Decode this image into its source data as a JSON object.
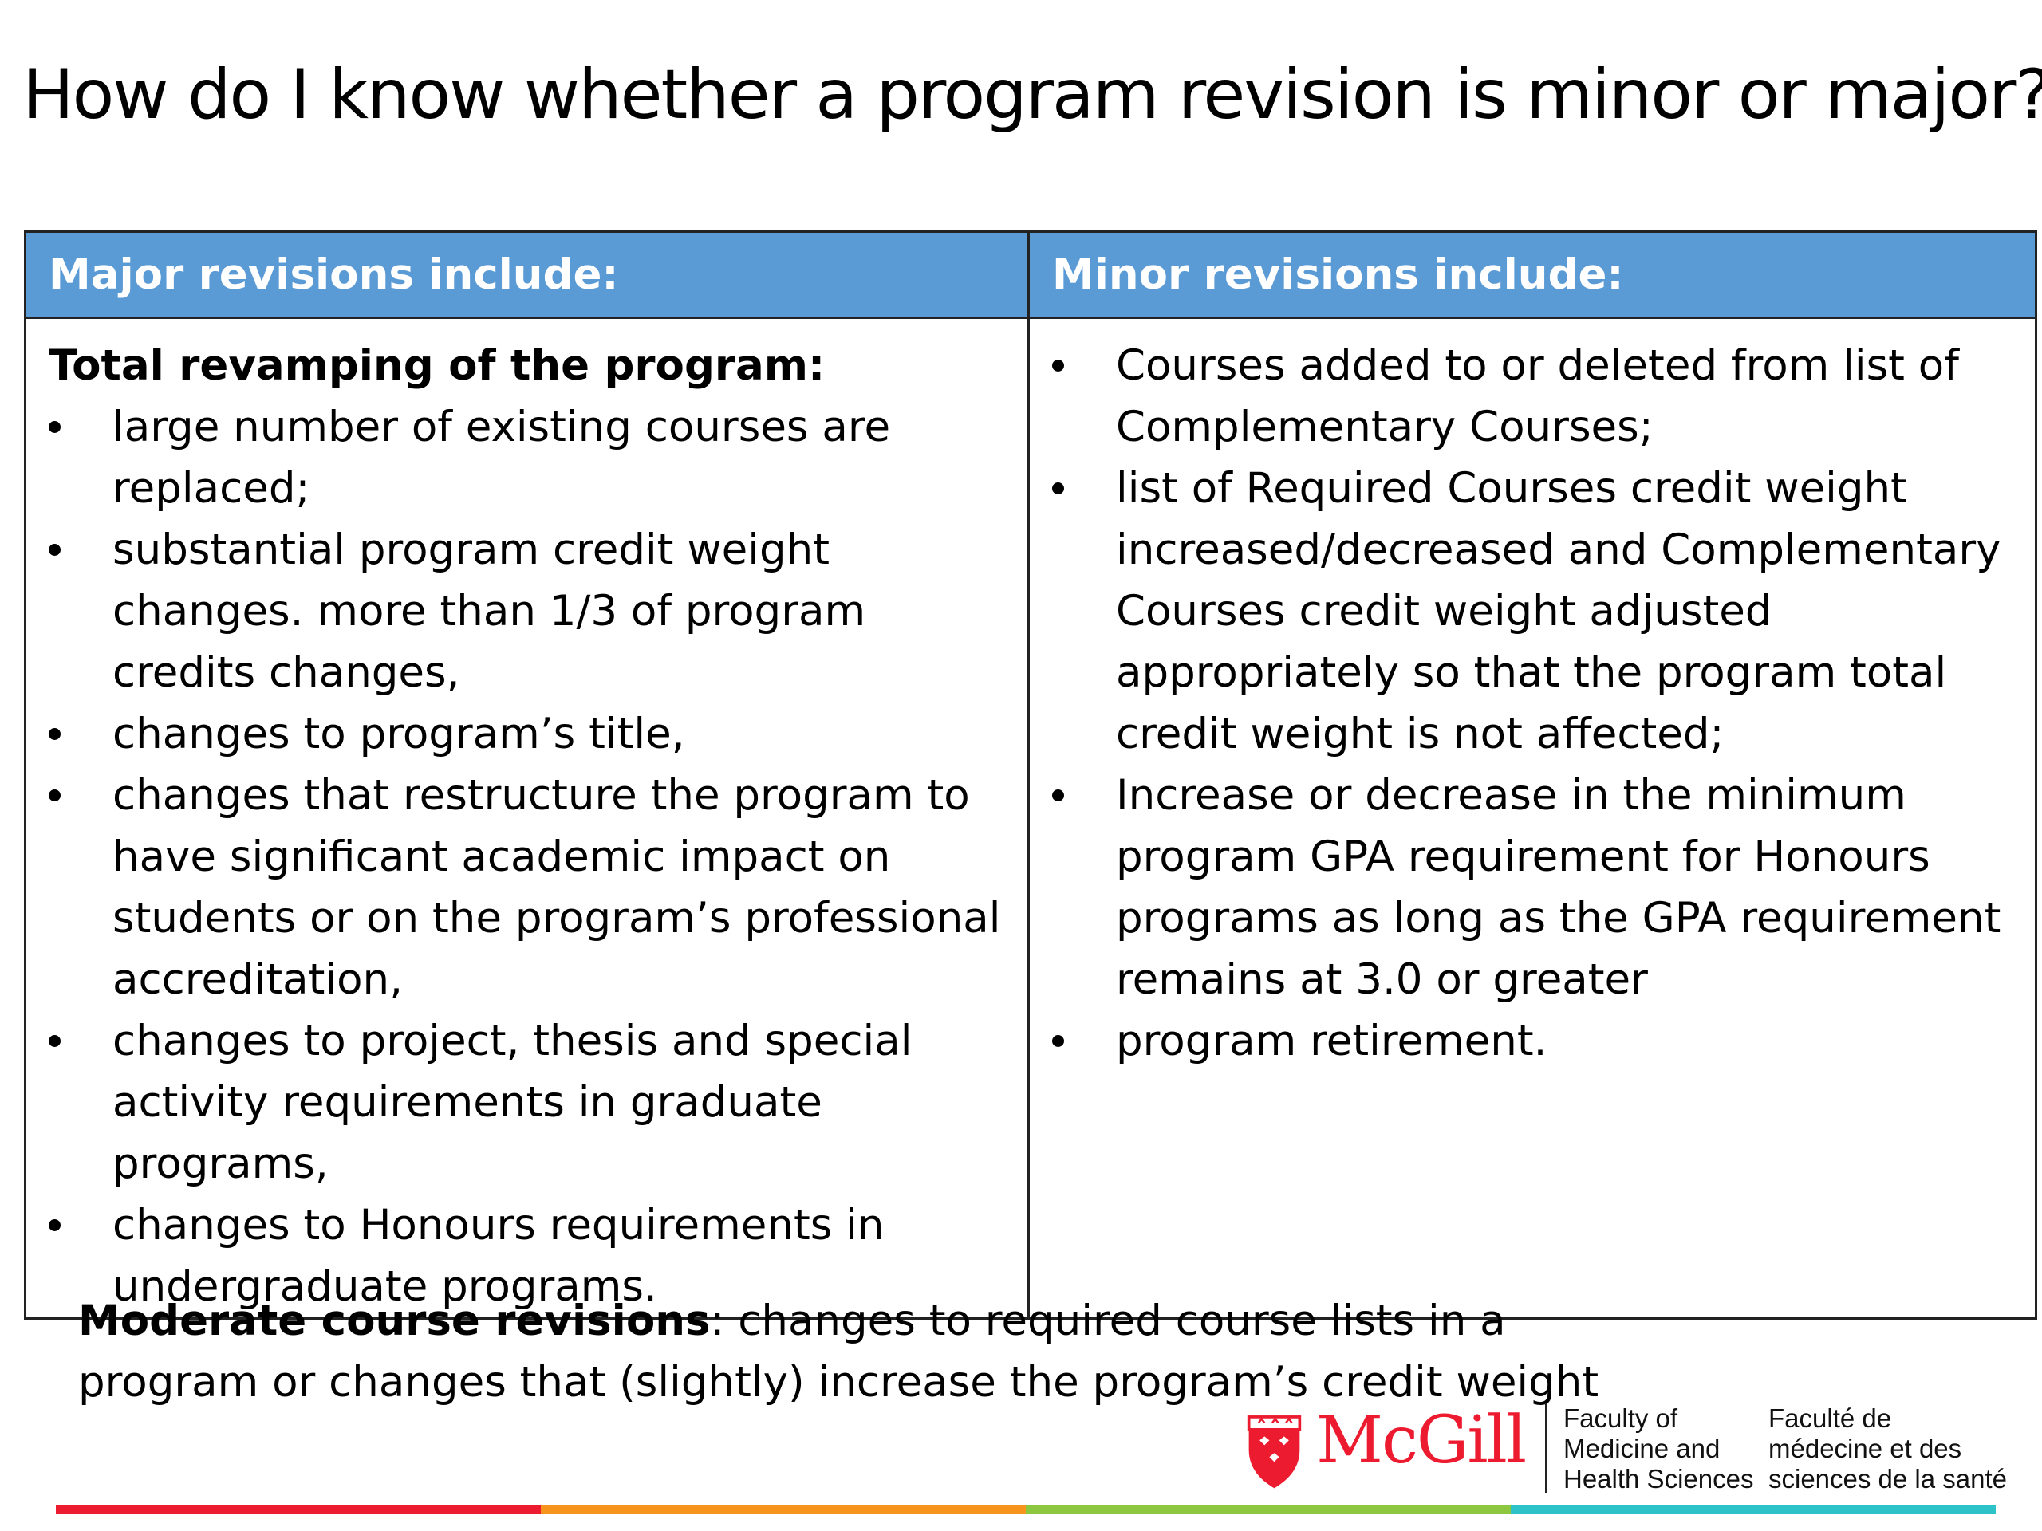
{
  "title": "How do I know whether a program revision is minor or major?",
  "table": {
    "major": {
      "header": "Major revisions include:",
      "subheading": "Total revamping of the program:",
      "items": [
        "large number of existing courses are replaced;",
        "substantial program credit weight changes. more than 1/3 of program credits changes,",
        "changes to program’s title,",
        "changes that restructure the program to have significant academic impact on students or on the program’s professional accreditation,",
        "changes to project, thesis and special activity requirements in graduate programs,",
        "changes to Honours requirements in undergraduate programs."
      ]
    },
    "minor": {
      "header": "Minor revisions include:",
      "items": [
        "Courses added to or deleted from list of Complementary Courses;",
        "list of Required Courses credit weight increased/decreased and Complementary Courses credit weight adjusted appropriately so that the program total credit weight is not affected;",
        "Increase or decrease in the minimum program GPA requirement for Honours programs as long as the GPA requirement remains at 3.0 or greater",
        "program retirement."
      ]
    }
  },
  "moderate": {
    "label": "Moderate course revisions",
    "text": ": changes to required course lists in a program or changes that (slightly) increase the program’s credit weight"
  },
  "logo": {
    "brand": "McGill",
    "faculty_en": [
      "Faculty of",
      "Medicine and",
      "Health Sciences"
    ],
    "faculty_fr": [
      "Faculté de",
      "médecine et des",
      "sciences de la santé"
    ]
  },
  "colors": {
    "header_bg": "#5b9bd5",
    "brand_red": "#ed1b2f",
    "stripes": [
      "#ed1b2f",
      "#f7941d",
      "#8dc63f",
      "#2cc2c7"
    ]
  }
}
